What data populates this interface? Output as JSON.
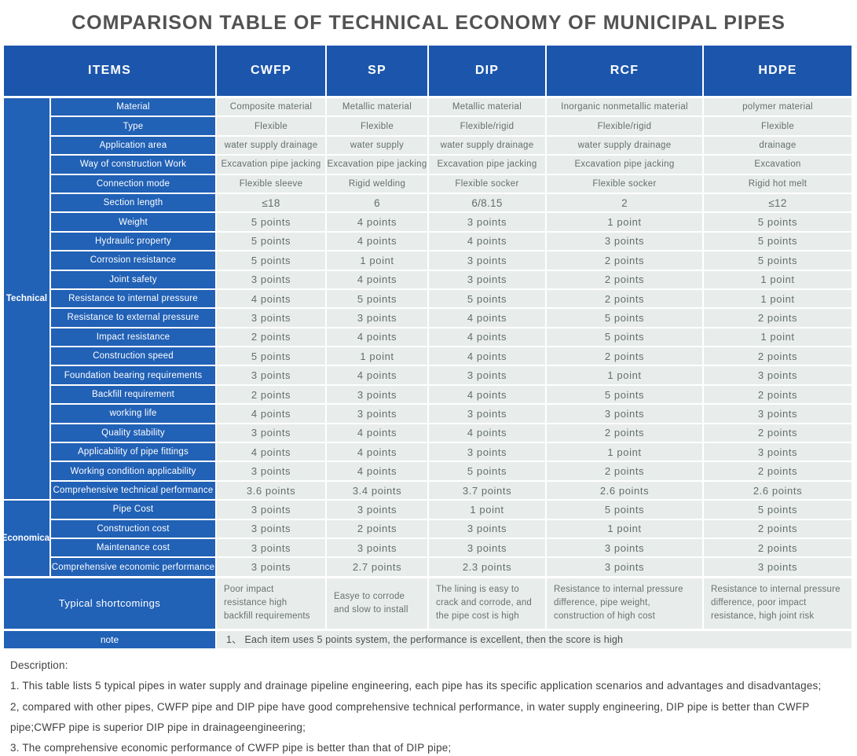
{
  "title": "COMPARISON TABLE OF TECHNICAL ECONOMY OF MUNICIPAL PIPES",
  "colors": {
    "header_blue": "#1c56ac",
    "label_blue": "#2161b6",
    "cell_background": "#e8edeb",
    "cell_text": "#646e6a"
  },
  "table": {
    "items_header": "ITEMS",
    "columns": [
      "CWFP",
      "SP",
      "DIP",
      "RCF",
      "HDPE"
    ],
    "groups": [
      {
        "label": "Technical",
        "row_count": 21
      },
      {
        "label": "Economical",
        "row_count": 4
      }
    ],
    "rows": [
      {
        "group": "Technical",
        "label": "Material",
        "values": [
          "Composite material",
          "Metallic material",
          "Metallic material",
          "Inorganic nonmetallic material",
          "polymer material"
        ]
      },
      {
        "group": "Technical",
        "label": "Type",
        "values": [
          "Flexible",
          "Flexible",
          "Flexible/rigid",
          "Flexible/rigid",
          "Flexible"
        ]
      },
      {
        "group": "Technical",
        "label": "Application area",
        "values": [
          "water supply drainage",
          "water supply",
          "water supply drainage",
          "water supply drainage",
          "drainage"
        ]
      },
      {
        "group": "Technical",
        "label": "Way of construction Work",
        "values": [
          "Excavation pipe jacking",
          "Excavation pipe jacking",
          "Excavation pipe jacking",
          "Excavation pipe jacking",
          "Excavation"
        ]
      },
      {
        "group": "Technical",
        "label": "Connection mode",
        "values": [
          "Flexible sleeve",
          "Rigid welding",
          "Flexible socker",
          "Flexible socker",
          "Rigid hot melt"
        ]
      },
      {
        "group": "Technical",
        "label": "Section length",
        "values": [
          "≤18",
          "6",
          "6/8.15",
          "2",
          "≤12"
        ]
      },
      {
        "group": "Technical",
        "label": "Weight",
        "values": [
          "5 points",
          "4 points",
          "3 points",
          "1 point",
          "5 points"
        ]
      },
      {
        "group": "Technical",
        "label": "Hydraulic property",
        "values": [
          "5 points",
          "4 points",
          "4 points",
          "3 points",
          "5 points"
        ]
      },
      {
        "group": "Technical",
        "label": "Corrosion resistance",
        "values": [
          "5 points",
          "1 point",
          "3 points",
          "2 points",
          "5 points"
        ]
      },
      {
        "group": "Technical",
        "label": "Joint safety",
        "values": [
          "3 points",
          "4 points",
          "3 points",
          "2 points",
          "1 point"
        ]
      },
      {
        "group": "Technical",
        "label": "Resistance to internal pressure",
        "values": [
          "4 points",
          "5 points",
          "5 points",
          "2 points",
          "1 point"
        ]
      },
      {
        "group": "Technical",
        "label": "Resistance to external pressure",
        "values": [
          "3 points",
          "3 points",
          "4 points",
          "5 points",
          "2 points"
        ]
      },
      {
        "group": "Technical",
        "label": "Impact resistance",
        "values": [
          "2 points",
          "4 points",
          "4 points",
          "5 points",
          "1 point"
        ]
      },
      {
        "group": "Technical",
        "label": "Construction speed",
        "values": [
          "5 points",
          "1 point",
          "4 points",
          "2 points",
          "2 points"
        ]
      },
      {
        "group": "Technical",
        "label": "Foundation bearing requirements",
        "values": [
          "3 points",
          "4 points",
          "3 points",
          "1 point",
          "3 points"
        ]
      },
      {
        "group": "Technical",
        "label": "Backfill requirement",
        "values": [
          "2 points",
          "3 points",
          "4 points",
          "5 points",
          "2 points"
        ]
      },
      {
        "group": "Technical",
        "label": "working life",
        "values": [
          "4 points",
          "3 points",
          "3 points",
          "3 points",
          "3 points"
        ]
      },
      {
        "group": "Technical",
        "label": "Quality stability",
        "values": [
          "3 points",
          "4 points",
          "4 points",
          "2 points",
          "2 points"
        ]
      },
      {
        "group": "Technical",
        "label": "Applicability of pipe fittings",
        "values": [
          "4 points",
          "4 points",
          "3 points",
          "1 point",
          "3 points"
        ]
      },
      {
        "group": "Technical",
        "label": "Working condition applicability",
        "values": [
          "3 points",
          "4 points",
          "5 points",
          "2 points",
          "2 points"
        ]
      },
      {
        "group": "Technical",
        "label": "Comprehensive technical performance",
        "values": [
          "3.6 points",
          "3.4 points",
          "3.7 points",
          "2.6 points",
          "2.6 points"
        ]
      },
      {
        "group": "Economical",
        "label": "Pipe Cost",
        "values": [
          "3 points",
          "3 points",
          "1 point",
          "5 points",
          "5 points"
        ]
      },
      {
        "group": "Economical",
        "label": "Construction cost",
        "values": [
          "3 points",
          "2 points",
          "3 points",
          "1 point",
          "2 points"
        ]
      },
      {
        "group": "Economical",
        "label": "Maintenance cost",
        "values": [
          "3 points",
          "3 points",
          "3 points",
          "3 points",
          "2 points"
        ]
      },
      {
        "group": "Economical",
        "label": "Comprehensive economic performance",
        "values": [
          "3 points",
          "2.7 points",
          "2.3 points",
          "3 points",
          "3 points"
        ]
      }
    ],
    "shortcomings": {
      "label": "Typical shortcomings",
      "values": [
        "Poor impact resistance high backfill requirements",
        "Easye to corrode and slow to install",
        "The lining is easy to crack and corrode, and the pipe cost is high",
        "Resistance to internal pressure difference, pipe weight, construction of high cost",
        "Resistance to internal pressure difference, poor impact resistance, high joint risk"
      ]
    },
    "note": {
      "label": "note",
      "text": "1、 Each item uses 5 points system, the performance is excellent, then the score is high"
    }
  },
  "description": {
    "heading": "Description:",
    "lines": [
      "1. This table lists 5 typical pipes in water supply and drainage pipeline engineering, each pipe has its specific application scenarios and advantages and disadvantages;",
      "2, compared with other pipes, CWFP pipe and DIP pipe have good comprehensive technical performance, in water supply engineering, DIP pipe is better than CWFP pipe;CWFP pipe is superior DIP pipe in drainageengineering;",
      "3. The comprehensive economic performance of CWFP pipe is better than that of DIP pipe;"
    ]
  }
}
